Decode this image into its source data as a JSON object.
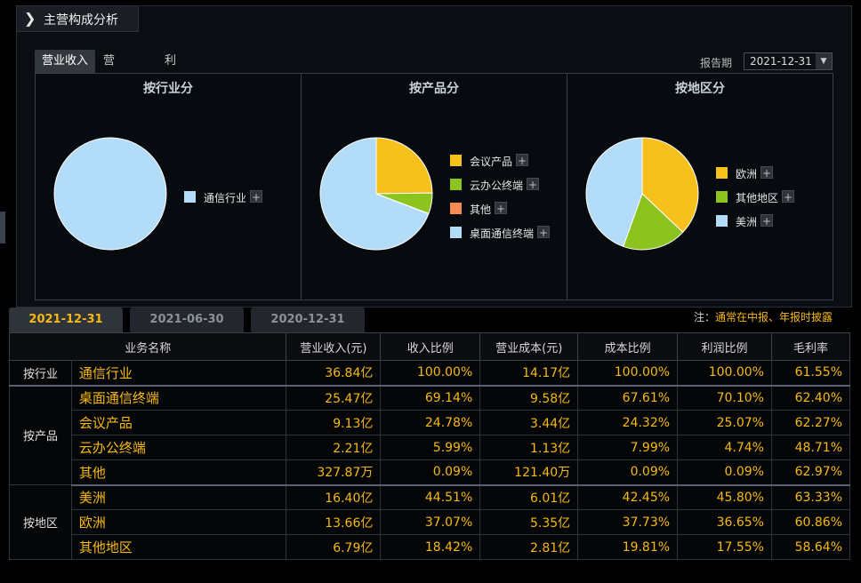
{
  "panel": {
    "title": "主营构成分析"
  },
  "tabs": [
    "营业收入",
    "营业成本",
    "利润比例"
  ],
  "report_period": {
    "label": "报告期",
    "value": "2021-12-31"
  },
  "charts": [
    {
      "title": "按行业分",
      "slices": [
        {
          "name": "通信行业",
          "value": 100.0,
          "color": "#b3dcf8"
        }
      ]
    },
    {
      "title": "按产品分",
      "slices": [
        {
          "name": "会议产品",
          "value": 24.78,
          "color": "#f6c11d"
        },
        {
          "name": "云办公终端",
          "value": 5.99,
          "color": "#8cc31f"
        },
        {
          "name": "其他",
          "value": 0.09,
          "color": "#f88b56"
        },
        {
          "name": "桌面通信终端",
          "value": 69.14,
          "color": "#b3dcf8"
        }
      ]
    },
    {
      "title": "按地区分",
      "slices": [
        {
          "name": "欧洲",
          "value": 37.07,
          "color": "#f6c11d"
        },
        {
          "name": "其他地区",
          "value": 18.42,
          "color": "#8cc31f"
        },
        {
          "name": "美洲",
          "value": 44.51,
          "color": "#b3dcf8"
        }
      ]
    }
  ],
  "chart_data": [
    {
      "type": "pie",
      "title": "按行业分",
      "categories": [
        "通信行业"
      ],
      "values": [
        100.0
      ]
    },
    {
      "type": "pie",
      "title": "按产品分",
      "categories": [
        "会议产品",
        "云办公终端",
        "其他",
        "桌面通信终端"
      ],
      "values": [
        24.78,
        5.99,
        0.09,
        69.14
      ]
    },
    {
      "type": "pie",
      "title": "按地区分",
      "categories": [
        "欧洲",
        "其他地区",
        "美洲"
      ],
      "values": [
        37.07,
        18.42,
        44.51
      ]
    }
  ],
  "period_tabs": [
    "2021-12-31",
    "2021-06-30",
    "2020-12-31"
  ],
  "note": {
    "prefix": "注：",
    "text": "通常在中报、年报时披露"
  },
  "table": {
    "headers": [
      "业务名称",
      "营业收入(元)",
      "收入比例",
      "营业成本(元)",
      "成本比例",
      "利润比例",
      "毛利率"
    ],
    "groups": [
      {
        "category": "按行业",
        "rows": [
          [
            "通信行业",
            "36.84亿",
            "100.00%",
            "14.17亿",
            "100.00%",
            "100.00%",
            "61.55%"
          ]
        ]
      },
      {
        "category": "按产品",
        "rows": [
          [
            "桌面通信终端",
            "25.47亿",
            "69.14%",
            "9.58亿",
            "67.61%",
            "70.10%",
            "62.40%"
          ],
          [
            "会议产品",
            "9.13亿",
            "24.78%",
            "3.44亿",
            "24.32%",
            "25.07%",
            "62.27%"
          ],
          [
            "云办公终端",
            "2.21亿",
            "5.99%",
            "1.13亿",
            "7.99%",
            "4.74%",
            "48.71%"
          ],
          [
            "其他",
            "327.87万",
            "0.09%",
            "121.40万",
            "0.09%",
            "0.09%",
            "62.97%"
          ]
        ]
      },
      {
        "category": "按地区",
        "rows": [
          [
            "美洲",
            "16.40亿",
            "44.51%",
            "6.01亿",
            "42.45%",
            "45.80%",
            "63.33%"
          ],
          [
            "欧洲",
            "13.66亿",
            "37.07%",
            "5.35亿",
            "37.73%",
            "36.65%",
            "60.86%"
          ],
          [
            "其他地区",
            "6.79亿",
            "18.42%",
            "2.81亿",
            "19.81%",
            "17.55%",
            "58.64%"
          ]
        ]
      }
    ]
  }
}
